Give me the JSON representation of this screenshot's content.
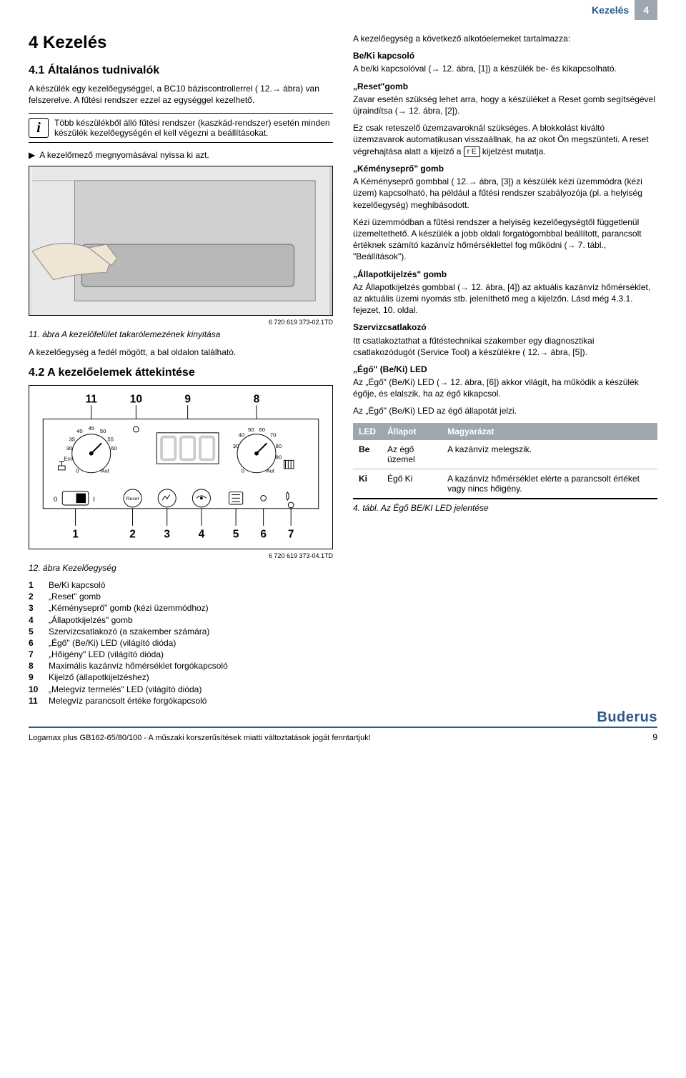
{
  "colors": {
    "brand": "#2a5a8a",
    "tab_bg": "#9ea6b0",
    "text": "#000000",
    "bg": "#ffffff",
    "rule": "#bbbbbb"
  },
  "header": {
    "label": "Kezelés",
    "num": "4"
  },
  "left": {
    "h1": "4   Kezelés",
    "s41_title": "4.1   Általános tudnivalók",
    "s41_p1": "A készülék egy kezelőegységgel, a BC10 báziscontrollerrel ( 12.→ ábra) van felszerelve. A fűtési rendszer ezzel az egységgel kezelhető.",
    "info_box": "Több készülékből álló fűtési rendszer (kaszkád-rendszer) esetén minden készülék kezelőegységén el kell végezni a beállításokat.",
    "bullet1": "A kezelőmező megnyomásával nyissa ki azt.",
    "fig1_code": "6 720 619 373-02.1TD",
    "fig1_caption": "11. ábra  A kezelőfelület takarólemezének kinyitása",
    "fig1_after": "A kezelőegység a fedél mögött, a bal oldalon található.",
    "s42_title": "4.2   A kezelőelemek áttekintése",
    "fig2_top_labels": [
      "11",
      "10",
      "9",
      "8"
    ],
    "fig2_bottom_labels": [
      "1",
      "2",
      "3",
      "4",
      "5",
      "6",
      "7"
    ],
    "dial_left": [
      "30",
      "35",
      "40",
      "45",
      "50",
      "55",
      "60",
      "Eco",
      "0",
      "Aut"
    ],
    "dial_right": [
      "30",
      "40",
      "50",
      "60",
      "70",
      "80",
      "90",
      "0",
      "Aut"
    ],
    "bottom_left_switch": [
      "0",
      "I"
    ],
    "reset_label": "Reset",
    "fig2_code": "6 720 619 373-04.1TD",
    "fig2_caption": "12. ábra  Kezelőegység",
    "legend": [
      {
        "n": "1",
        "t": "Be/Ki kapcsoló"
      },
      {
        "n": "2",
        "t": "„Reset\" gomb"
      },
      {
        "n": "3",
        "t": "„Kéményseprő\" gomb (kézi üzemmódhoz)"
      },
      {
        "n": "4",
        "t": "„Állapotkijelzés\" gomb"
      },
      {
        "n": "5",
        "t": "Szervizcsatlakozó (a szakember számára)"
      },
      {
        "n": "6",
        "t": "„Égő\" (Be/Ki) LED (világító dióda)"
      },
      {
        "n": "7",
        "t": "„Hőigény\" LED (világító dióda)"
      },
      {
        "n": "8",
        "t": "Maximális kazánvíz hőmérséklet forgókapcsoló"
      },
      {
        "n": "9",
        "t": "Kijelző (állapotkijelzéshez)"
      },
      {
        "n": "10",
        "t": "„Melegvíz termelés\" LED (világító dióda)"
      },
      {
        "n": "11",
        "t": "Melegvíz parancsolt értéke forgókapcsoló"
      }
    ]
  },
  "right": {
    "intro": "A kezelőegység a következő alkotóelemeket tartalmazza:",
    "beki_h": "Be/Ki kapcsoló",
    "beki_p": "A be/ki kapcsolóval (→  12. ábra, [1]) a készülék be- és kikapcsolható.",
    "reset_h": "„Reset\"gomb",
    "reset_p1": "Zavar esetén szükség lehet arra, hogy a készüléket a Reset gomb segítségével újraindítsa (→ 12. ábra, [2]).",
    "reset_p2a": "Ez csak reteszelő üzemzavaroknál szükséges. A blokkolást kiváltó üzemzavarok automatikusan visszaállnak, ha az okot Ön megszünteti. A reset végrehajtása alatt a kijelző a ",
    "reset_p2_icon": "r E",
    "reset_p2b": " kijelzést mutatja.",
    "kemeny_h": "„Kéményseprő\" gomb",
    "kemeny_p1": "A Kéményseprő  gombbal (  12.→  ábra, [3]) a készülék kézi üzemmódra (kézi üzem) kapcsolható, ha például a fűtési rendszer szabályozója (pl. a helyiség kezelőegység) meghibásodott.",
    "kemeny_p2": "Kézi üzemmódban a fűtési rendszer a helyiség kezelőegységtől függetlenül üzemeltethető. A készülék a jobb oldali forgatógombbal beállított, parancsolt értéknek számító kazánvíz hőmérséklettel fog működni (→ 7. tábl., \"Beállítások\").",
    "allapot_h": "„Állapotkijelzés\" gomb",
    "allapot_p": "Az Állapotkijelzés gombbal (→  12. ábra, [4]) az aktuális kazánvíz hőmérséklet, az aktuális üzemi nyomás stb. jeleníthető meg a kijelzőn. Lásd még 4.3.1. fejezet, 10. oldal.",
    "szerviz_h": "Szervizcsatlakozó",
    "szerviz_p": "Itt csatlakoztathat a fűtéstechnikai szakember egy diagnosztikai csatlakozódugót (Service Tool) a készülékre ( 12.→ ábra, [5]).",
    "ego_h": "„Égő\" (Be/Ki) LED",
    "ego_p1": "Az „Égő\"  (Be/Ki) LED (→ 12. ábra, [6]) akkor világít, ha működik a készülék égője, és elalszik, ha az égő kikapcsol.",
    "ego_p2": "Az „Égő\" (Be/Ki) LED az égő állapotát jelzi.",
    "table": {
      "headers": [
        "LED",
        "Állapot",
        "Magyarázat"
      ],
      "rows": [
        {
          "led": "Be",
          "allapot": "Az égő üzemel",
          "mag": "A kazánvíz melegszik."
        },
        {
          "led": "Ki",
          "allapot": "Égő Ki",
          "mag": "A kazánvíz hőmérséklet elérte a parancsolt értéket vagy nincs hőigény."
        }
      ]
    },
    "table_caption": "4. tábl.   Az Égő BE/KI LED jelentése"
  },
  "footer": {
    "logo": "Buderus",
    "text": "Logamax plus GB162-65/80/100 - A műszaki korszerűsítések miatti változtatások jogát fenntartjuk!",
    "page": "9"
  }
}
